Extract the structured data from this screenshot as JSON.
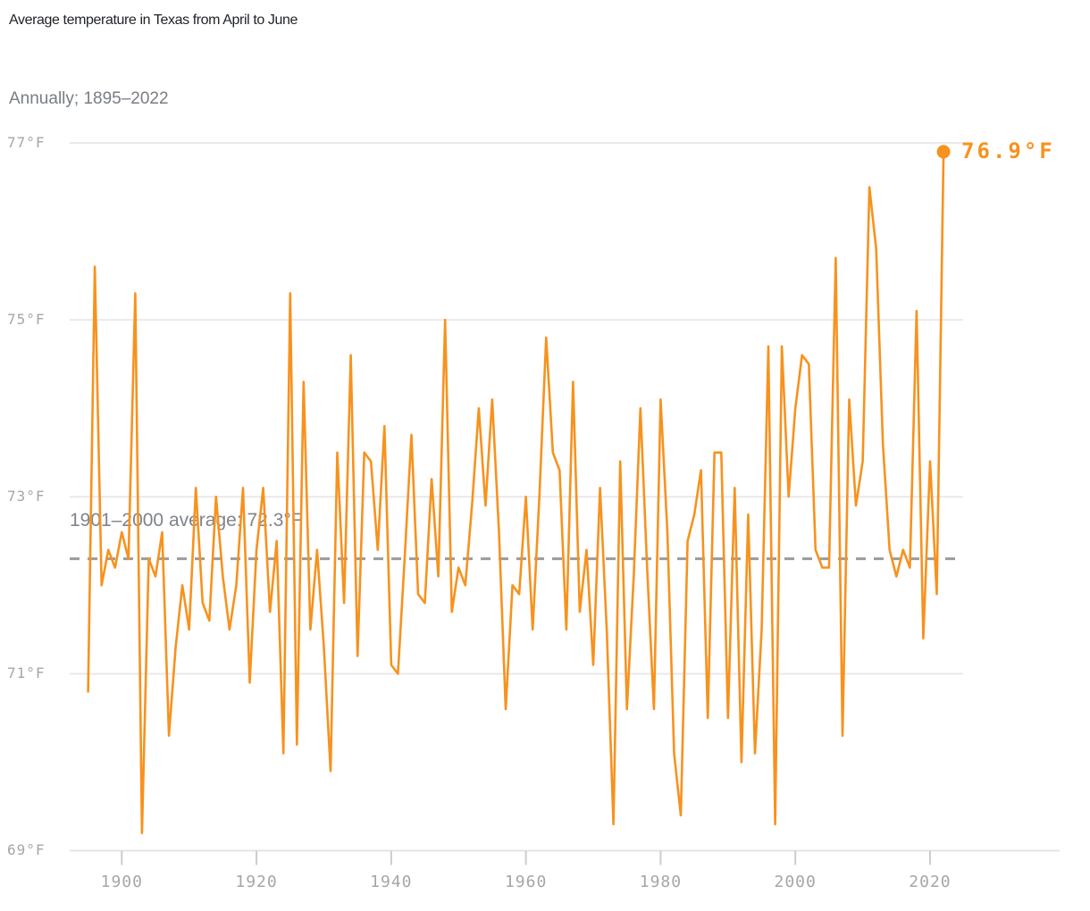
{
  "header": {
    "title": "Average temperature in Texas from April to June",
    "subtitle": "Annually; 1895–2022"
  },
  "colors": {
    "line": "#F7921E",
    "dot": "#F7921E",
    "end_label": "#F7921E",
    "dashed_line": "#9B9B9B",
    "gridline": "#E9E9E9",
    "axis_line": "#E4E4E4",
    "tick_mark": "#CDCDCD",
    "axis_label": "#A6A6A6",
    "title_text": "#1E2227",
    "subtitle_text": "#787D84",
    "annotation_text": "#7F838A"
  },
  "chart_data": {
    "type": "line",
    "title": "Average temperature in Texas from April to June",
    "subtitle": "Annually; 1895–2022",
    "xlabel": "",
    "ylabel": "",
    "xlim": [
      1895,
      2022
    ],
    "ylim": [
      69,
      77
    ],
    "grid": "horizontal",
    "legend_position": "none",
    "x_ticks": [
      1900,
      1920,
      1940,
      1960,
      1980,
      2000,
      2020
    ],
    "y_ticks": [
      69,
      71,
      73,
      75,
      77
    ],
    "y_tick_suffix": "°F",
    "average_line": {
      "value": 72.3,
      "label": "1901–2000 average: 72.3°F"
    },
    "end_point": {
      "year": 2022,
      "value": 76.9,
      "label": "76.9°F"
    },
    "series": [
      {
        "name": "Average temperature (°F)",
        "x_start": 1895,
        "x_step": 1,
        "values": [
          70.8,
          75.6,
          72.0,
          72.4,
          72.2,
          72.6,
          72.3,
          75.3,
          69.2,
          72.3,
          72.1,
          72.6,
          70.3,
          71.3,
          72.0,
          71.5,
          73.1,
          71.8,
          71.6,
          73.0,
          72.1,
          71.5,
          72.0,
          73.1,
          70.9,
          72.4,
          73.1,
          71.7,
          72.5,
          70.1,
          75.3,
          70.2,
          74.3,
          71.5,
          72.4,
          71.3,
          69.9,
          73.5,
          71.8,
          74.6,
          71.2,
          73.5,
          73.4,
          72.4,
          73.8,
          71.1,
          71.0,
          72.3,
          73.7,
          71.9,
          71.8,
          73.2,
          72.1,
          75.0,
          71.7,
          72.2,
          72.0,
          72.9,
          74.0,
          72.9,
          74.1,
          72.6,
          70.6,
          72.0,
          71.9,
          73.0,
          71.5,
          73.0,
          74.8,
          73.5,
          73.3,
          71.5,
          74.3,
          71.7,
          72.4,
          71.1,
          73.1,
          71.5,
          69.3,
          73.4,
          70.6,
          72.1,
          74.0,
          72.2,
          70.6,
          74.1,
          72.6,
          70.1,
          69.4,
          72.5,
          72.8,
          73.3,
          70.5,
          73.5,
          73.5,
          70.5,
          73.1,
          70.0,
          72.8,
          70.1,
          71.5,
          74.7,
          69.3,
          74.7,
          73.0,
          74.0,
          74.6,
          74.5,
          72.4,
          72.2,
          72.2,
          75.7,
          70.3,
          74.1,
          72.9,
          73.4,
          76.5,
          75.8,
          73.6,
          72.4,
          72.1,
          72.4,
          72.2,
          75.1,
          71.4,
          73.4,
          71.9,
          76.9
        ]
      }
    ]
  }
}
